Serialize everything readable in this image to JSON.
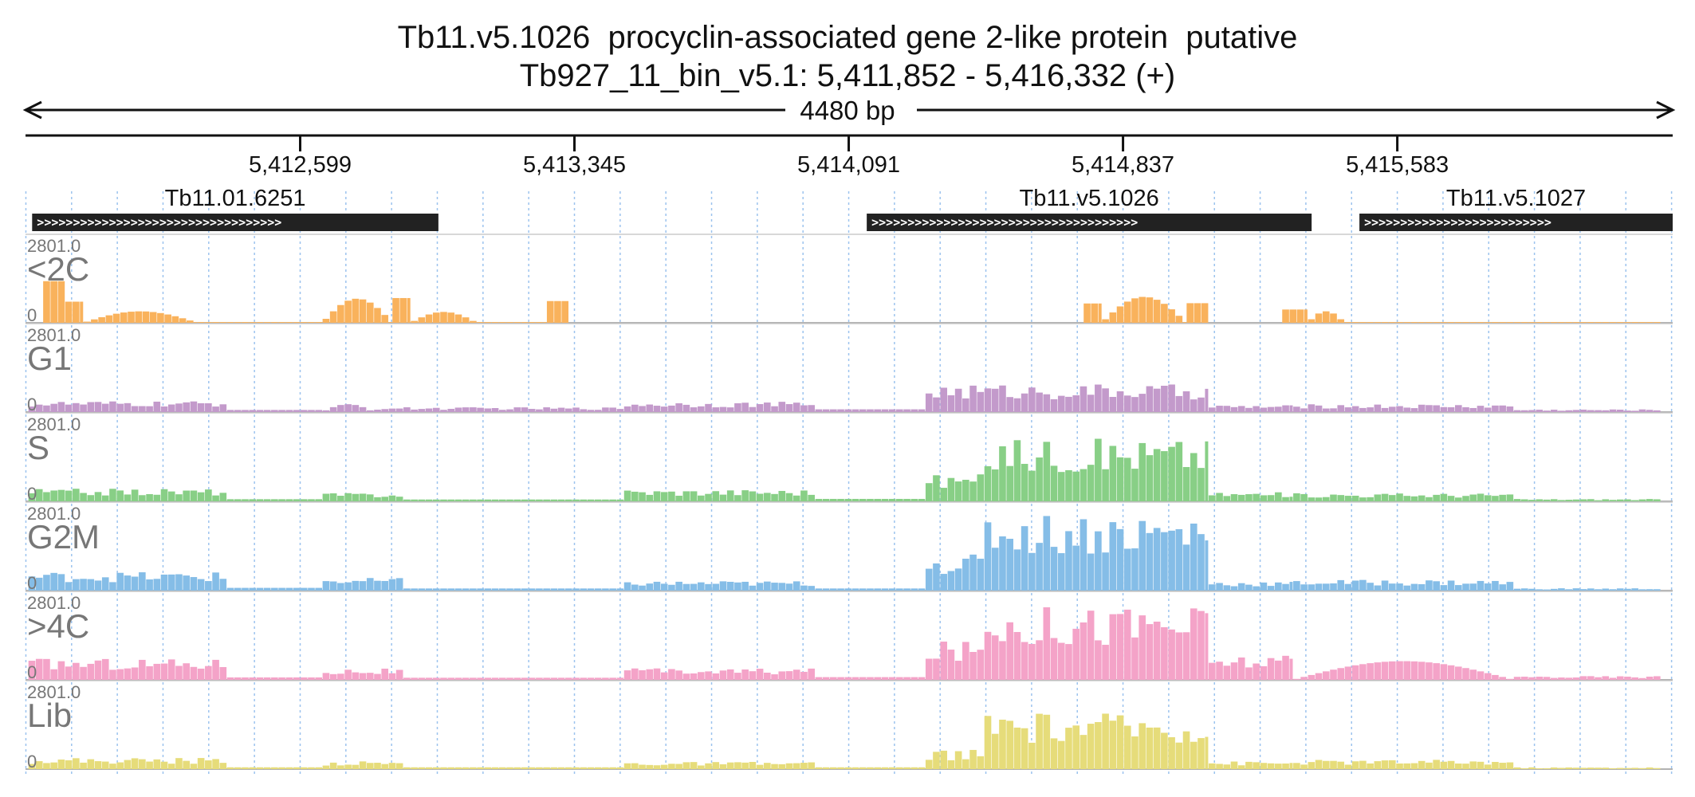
{
  "chart_data": {
    "type": "bar",
    "title": "Tb11.v5.1026  procyclin-associated gene 2-like protein  putative",
    "subtitle": "Tb927_11_bin_v5.1: 5,411,852 - 5,416,332 (+)",
    "span_label": "4480 bp",
    "region": {
      "start": 5411852,
      "end": 5416332,
      "strand": "+"
    },
    "ticks": [
      {
        "pos": 5412599,
        "label": "5,412,599"
      },
      {
        "pos": 5413345,
        "label": "5,413,345"
      },
      {
        "pos": 5414091,
        "label": "5,414,091"
      },
      {
        "pos": 5414837,
        "label": "5,414,837"
      },
      {
        "pos": 5415583,
        "label": "5,415,583"
      }
    ],
    "genes": [
      {
        "name": "Tb11.01.6251",
        "start": 5411870,
        "end": 5412975
      },
      {
        "name": "Tb11.v5.1026",
        "start": 5414140,
        "end": 5415350
      },
      {
        "name": "Tb11.v5.1027",
        "start": 5415480,
        "end": 5416332
      }
    ],
    "grid": true,
    "bin_size": 20,
    "tracks": [
      {
        "name": "<2C",
        "max_label": "2801.0",
        "min_label": "0",
        "ymax": 2801,
        "color": "#f9b25c",
        "segments": [
          {
            "start": 5411900,
            "end": 5411960,
            "shape": "flat",
            "value": 1380
          },
          {
            "start": 5411960,
            "end": 5412010,
            "shape": "flat",
            "value": 700
          },
          {
            "start": 5412010,
            "end": 5412320,
            "shape": "hump",
            "value": 380
          },
          {
            "start": 5412320,
            "end": 5412660,
            "shape": "flat",
            "value": 20
          },
          {
            "start": 5412660,
            "end": 5412850,
            "shape": "hump",
            "value": 800
          },
          {
            "start": 5412850,
            "end": 5412900,
            "shape": "flat",
            "value": 820
          },
          {
            "start": 5412900,
            "end": 5413080,
            "shape": "hump",
            "value": 360
          },
          {
            "start": 5413080,
            "end": 5413270,
            "shape": "flat",
            "value": 20
          },
          {
            "start": 5413270,
            "end": 5413330,
            "shape": "flat",
            "value": 720
          },
          {
            "start": 5414730,
            "end": 5414780,
            "shape": "flat",
            "value": 640
          },
          {
            "start": 5414780,
            "end": 5415010,
            "shape": "hump",
            "value": 860
          },
          {
            "start": 5415010,
            "end": 5415070,
            "shape": "flat",
            "value": 650
          },
          {
            "start": 5415270,
            "end": 5415340,
            "shape": "flat",
            "value": 440
          },
          {
            "start": 5415340,
            "end": 5415440,
            "shape": "hump",
            "value": 380
          },
          {
            "start": 5415440,
            "end": 5416300,
            "shape": "flat",
            "value": 25
          }
        ]
      },
      {
        "name": "G1",
        "max_label": "2801.0",
        "min_label": "0",
        "ymax": 2801,
        "color": "#c39acb",
        "segments": [
          {
            "start": 5411860,
            "end": 5412400,
            "shape": "noisy",
            "value": 360
          },
          {
            "start": 5412400,
            "end": 5412660,
            "shape": "flat",
            "value": 70
          },
          {
            "start": 5412660,
            "end": 5412800,
            "shape": "hump",
            "value": 260
          },
          {
            "start": 5412800,
            "end": 5413480,
            "shape": "noisy",
            "value": 160
          },
          {
            "start": 5413480,
            "end": 5414000,
            "shape": "noisy",
            "value": 340
          },
          {
            "start": 5414000,
            "end": 5414300,
            "shape": "flat",
            "value": 90
          },
          {
            "start": 5414300,
            "end": 5415070,
            "shape": "noisy",
            "value": 920
          },
          {
            "start": 5415070,
            "end": 5415300,
            "shape": "noisy",
            "value": 230
          },
          {
            "start": 5415300,
            "end": 5415900,
            "shape": "noisy",
            "value": 260
          },
          {
            "start": 5415900,
            "end": 5416300,
            "shape": "noisy",
            "value": 90
          }
        ]
      },
      {
        "name": "S",
        "max_label": "2801.0",
        "min_label": "0",
        "ymax": 2801,
        "color": "#88cf86",
        "segments": [
          {
            "start": 5411860,
            "end": 5412400,
            "shape": "noisy",
            "value": 420
          },
          {
            "start": 5412400,
            "end": 5412660,
            "shape": "flat",
            "value": 70
          },
          {
            "start": 5412660,
            "end": 5412880,
            "shape": "noisy",
            "value": 280
          },
          {
            "start": 5412880,
            "end": 5413480,
            "shape": "flat",
            "value": 60
          },
          {
            "start": 5413480,
            "end": 5414000,
            "shape": "noisy",
            "value": 400
          },
          {
            "start": 5414000,
            "end": 5414300,
            "shape": "flat",
            "value": 80
          },
          {
            "start": 5414300,
            "end": 5414460,
            "shape": "noisy",
            "value": 900
          },
          {
            "start": 5414460,
            "end": 5415070,
            "shape": "noisy",
            "value": 2100
          },
          {
            "start": 5415070,
            "end": 5415300,
            "shape": "noisy",
            "value": 300
          },
          {
            "start": 5415300,
            "end": 5415900,
            "shape": "noisy",
            "value": 270
          },
          {
            "start": 5415900,
            "end": 5416300,
            "shape": "noisy",
            "value": 80
          }
        ]
      },
      {
        "name": "G2M",
        "max_label": "2801.0",
        "min_label": "0",
        "ymax": 2801,
        "color": "#85bde7",
        "segments": [
          {
            "start": 5411860,
            "end": 5412400,
            "shape": "noisy",
            "value": 620
          },
          {
            "start": 5412400,
            "end": 5412660,
            "shape": "flat",
            "value": 90
          },
          {
            "start": 5412660,
            "end": 5412880,
            "shape": "noisy",
            "value": 420
          },
          {
            "start": 5412880,
            "end": 5413480,
            "shape": "flat",
            "value": 70
          },
          {
            "start": 5413480,
            "end": 5414000,
            "shape": "noisy",
            "value": 320
          },
          {
            "start": 5414000,
            "end": 5414300,
            "shape": "flat",
            "value": 70
          },
          {
            "start": 5414300,
            "end": 5414460,
            "shape": "noisy",
            "value": 1200
          },
          {
            "start": 5414460,
            "end": 5415070,
            "shape": "noisy",
            "value": 2600
          },
          {
            "start": 5415070,
            "end": 5415300,
            "shape": "noisy",
            "value": 300
          },
          {
            "start": 5415300,
            "end": 5415900,
            "shape": "noisy",
            "value": 360
          },
          {
            "start": 5415900,
            "end": 5416300,
            "shape": "noisy",
            "value": 80
          }
        ]
      },
      {
        "name": ">4C",
        "max_label": "2801.0",
        "min_label": "0",
        "ymax": 2801,
        "color": "#f4a3c8",
        "segments": [
          {
            "start": 5411860,
            "end": 5412400,
            "shape": "noisy",
            "value": 720
          },
          {
            "start": 5412400,
            "end": 5412660,
            "shape": "flat",
            "value": 80
          },
          {
            "start": 5412660,
            "end": 5412880,
            "shape": "noisy",
            "value": 380
          },
          {
            "start": 5412880,
            "end": 5413480,
            "shape": "flat",
            "value": 70
          },
          {
            "start": 5413480,
            "end": 5414000,
            "shape": "noisy",
            "value": 380
          },
          {
            "start": 5414000,
            "end": 5414300,
            "shape": "flat",
            "value": 90
          },
          {
            "start": 5414300,
            "end": 5414460,
            "shape": "noisy",
            "value": 1300
          },
          {
            "start": 5414460,
            "end": 5415070,
            "shape": "noisy",
            "value": 2500
          },
          {
            "start": 5415070,
            "end": 5415300,
            "shape": "noisy",
            "value": 800
          },
          {
            "start": 5415300,
            "end": 5415900,
            "shape": "hump",
            "value": 620
          },
          {
            "start": 5415900,
            "end": 5416300,
            "shape": "noisy",
            "value": 130
          }
        ]
      },
      {
        "name": "Lib",
        "max_label": "2801.0",
        "min_label": "0",
        "ymax": 2801,
        "color": "#e6dc7a",
        "segments": [
          {
            "start": 5411860,
            "end": 5412400,
            "shape": "noisy",
            "value": 380
          },
          {
            "start": 5412400,
            "end": 5412660,
            "shape": "flat",
            "value": 60
          },
          {
            "start": 5412660,
            "end": 5412880,
            "shape": "noisy",
            "value": 260
          },
          {
            "start": 5412880,
            "end": 5413480,
            "shape": "flat",
            "value": 60
          },
          {
            "start": 5413480,
            "end": 5414000,
            "shape": "noisy",
            "value": 240
          },
          {
            "start": 5414000,
            "end": 5414300,
            "shape": "flat",
            "value": 60
          },
          {
            "start": 5414300,
            "end": 5414460,
            "shape": "noisy",
            "value": 650
          },
          {
            "start": 5414460,
            "end": 5415070,
            "shape": "noisy",
            "value": 1850
          },
          {
            "start": 5415070,
            "end": 5415300,
            "shape": "noisy",
            "value": 260
          },
          {
            "start": 5415300,
            "end": 5415900,
            "shape": "noisy",
            "value": 310
          },
          {
            "start": 5415900,
            "end": 5416300,
            "shape": "noisy",
            "value": 60
          }
        ]
      }
    ]
  }
}
